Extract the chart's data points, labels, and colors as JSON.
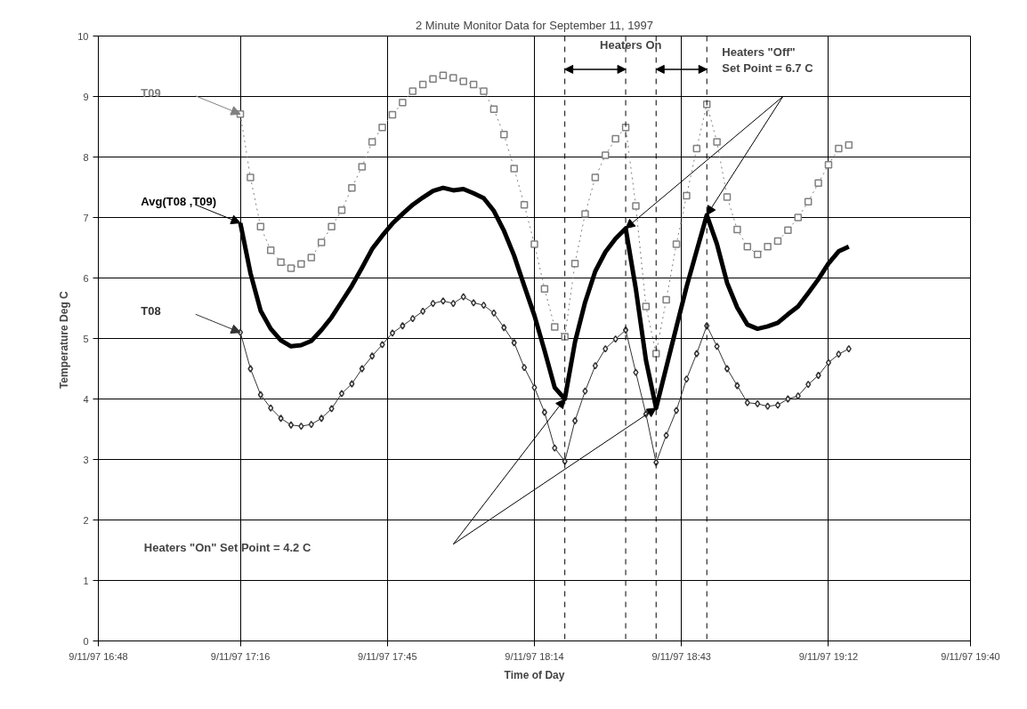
{
  "chart_data": {
    "type": "line",
    "title": "2 Minute Monitor Data for September 11, 1997",
    "xlabel": "Time of Day",
    "ylabel": "Temperature  Deg C",
    "x": [
      "1997-09-11T17:16",
      "1997-09-11T17:18",
      "1997-09-11T17:20",
      "1997-09-11T17:22",
      "1997-09-11T17:24",
      "1997-09-11T17:26",
      "1997-09-11T17:28",
      "1997-09-11T17:30",
      "1997-09-11T17:32",
      "1997-09-11T17:34",
      "1997-09-11T17:36",
      "1997-09-11T17:38",
      "1997-09-11T17:40",
      "1997-09-11T17:42",
      "1997-09-11T17:44",
      "1997-09-11T17:46",
      "1997-09-11T17:48",
      "1997-09-11T17:50",
      "1997-09-11T17:52",
      "1997-09-11T17:54",
      "1997-09-11T17:56",
      "1997-09-11T17:58",
      "1997-09-11T18:00",
      "1997-09-11T18:02",
      "1997-09-11T18:04",
      "1997-09-11T18:06",
      "1997-09-11T18:08",
      "1997-09-11T18:10",
      "1997-09-11T18:12",
      "1997-09-11T18:14",
      "1997-09-11T18:16",
      "1997-09-11T18:18",
      "1997-09-11T18:20",
      "1997-09-11T18:22",
      "1997-09-11T18:24",
      "1997-09-11T18:26",
      "1997-09-11T18:28",
      "1997-09-11T18:30",
      "1997-09-11T18:32",
      "1997-09-11T18:34",
      "1997-09-11T18:36",
      "1997-09-11T18:38",
      "1997-09-11T18:40",
      "1997-09-11T18:42",
      "1997-09-11T18:44",
      "1997-09-11T18:46",
      "1997-09-11T18:48",
      "1997-09-11T18:50",
      "1997-09-11T18:52",
      "1997-09-11T18:54",
      "1997-09-11T18:56",
      "1997-09-11T18:58",
      "1997-09-11T19:00",
      "1997-09-11T19:02",
      "1997-09-11T19:04",
      "1997-09-11T19:06",
      "1997-09-11T19:08",
      "1997-09-11T19:10",
      "1997-09-11T19:12",
      "1997-09-11T19:14",
      "1997-09-11T19:16"
    ],
    "series": [
      {
        "name": "T09",
        "color": "#808080",
        "marker": "square",
        "line_style": "dotted",
        "values": [
          8.71,
          7.66,
          6.85,
          6.46,
          6.26,
          6.16,
          6.23,
          6.34,
          6.59,
          6.85,
          7.12,
          7.49,
          7.84,
          8.25,
          8.49,
          8.7,
          8.9,
          9.09,
          9.2,
          9.29,
          9.35,
          9.31,
          9.25,
          9.2,
          9.09,
          8.79,
          8.37,
          7.81,
          7.21,
          6.56,
          5.82,
          5.19,
          5.03,
          6.24,
          7.06,
          7.66,
          8.03,
          8.3,
          8.49,
          7.19,
          5.53,
          4.75,
          5.64,
          6.56,
          7.36,
          8.14,
          8.87,
          8.25,
          7.34,
          6.8,
          6.52,
          6.39,
          6.52,
          6.61,
          6.79,
          7.0,
          7.26,
          7.57,
          7.87,
          8.14,
          8.2
        ]
      },
      {
        "name": "Avg(T08 ,T09)",
        "color": "#000000",
        "marker": "none",
        "line_style": "solid",
        "values": [
          6.91,
          6.08,
          5.46,
          5.16,
          4.97,
          4.87,
          4.89,
          4.96,
          5.14,
          5.35,
          5.61,
          5.87,
          6.17,
          6.48,
          6.7,
          6.9,
          7.06,
          7.21,
          7.33,
          7.44,
          7.49,
          7.45,
          7.47,
          7.4,
          7.32,
          7.11,
          6.78,
          6.37,
          5.87,
          5.38,
          4.8,
          4.19,
          4.0,
          4.94,
          5.6,
          6.11,
          6.43,
          6.65,
          6.82,
          5.82,
          4.64,
          3.85,
          4.52,
          5.19,
          5.85,
          6.45,
          7.04,
          6.56,
          5.92,
          5.51,
          5.23,
          5.16,
          5.2,
          5.26,
          5.4,
          5.53,
          5.75,
          5.98,
          6.24,
          6.44,
          6.52
        ]
      },
      {
        "name": "T08",
        "color": "#333333",
        "marker": "diamond",
        "line_style": "solid",
        "values": [
          5.1,
          4.5,
          4.07,
          3.85,
          3.68,
          3.57,
          3.55,
          3.58,
          3.68,
          3.84,
          4.09,
          4.25,
          4.5,
          4.71,
          4.9,
          5.09,
          5.21,
          5.33,
          5.45,
          5.58,
          5.62,
          5.58,
          5.69,
          5.59,
          5.55,
          5.42,
          5.18,
          4.93,
          4.52,
          4.19,
          3.78,
          3.19,
          2.97,
          3.64,
          4.13,
          4.55,
          4.83,
          4.99,
          5.14,
          4.44,
          3.75,
          2.95,
          3.4,
          3.81,
          4.33,
          4.75,
          5.21,
          4.87,
          4.5,
          4.22,
          3.94,
          3.92,
          3.88,
          3.9,
          4.0,
          4.05,
          4.24,
          4.39,
          4.6,
          4.74,
          4.83
        ]
      }
    ],
    "xlim": [
      "1997-09-11T16:48",
      "1997-09-11T19:40"
    ],
    "xticks": [
      {
        "value": "1997-09-11T16:48",
        "label": "9/11/97 16:48"
      },
      {
        "value": "1997-09-11T17:16",
        "label": "9/11/97 17:16"
      },
      {
        "value": "1997-09-11T17:45",
        "label": "9/11/97 17:45"
      },
      {
        "value": "1997-09-11T18:14",
        "label": "9/11/97 18:14"
      },
      {
        "value": "1997-09-11T18:43",
        "label": "9/11/97 18:43"
      },
      {
        "value": "1997-09-11T19:12",
        "label": "9/11/97 19:12"
      },
      {
        "value": "1997-09-11T19:40",
        "label": "9/11/97 19:40"
      }
    ],
    "ylim": [
      0,
      10
    ],
    "yticks": [
      0,
      1,
      2,
      3,
      4,
      5,
      6,
      7,
      8,
      9,
      10
    ],
    "grid": true,
    "ref_lines": [
      {
        "axis": "x",
        "value": "1997-09-11T18:20",
        "color": "#000000",
        "line_style": "dashed"
      },
      {
        "axis": "x",
        "value": "1997-09-11T18:32",
        "color": "#000000",
        "line_style": "dashed"
      },
      {
        "axis": "x",
        "value": "1997-09-11T18:38",
        "color": "#000000",
        "line_style": "dashed"
      },
      {
        "axis": "x",
        "value": "1997-09-11T18:48",
        "color": "#000000",
        "line_style": "dashed"
      }
    ],
    "annotations": [
      "Heaters On",
      "Heaters \"Off\"\nSet Point = 6.7 C",
      "Heaters \"On\" Set Point = 4.2 C"
    ]
  }
}
